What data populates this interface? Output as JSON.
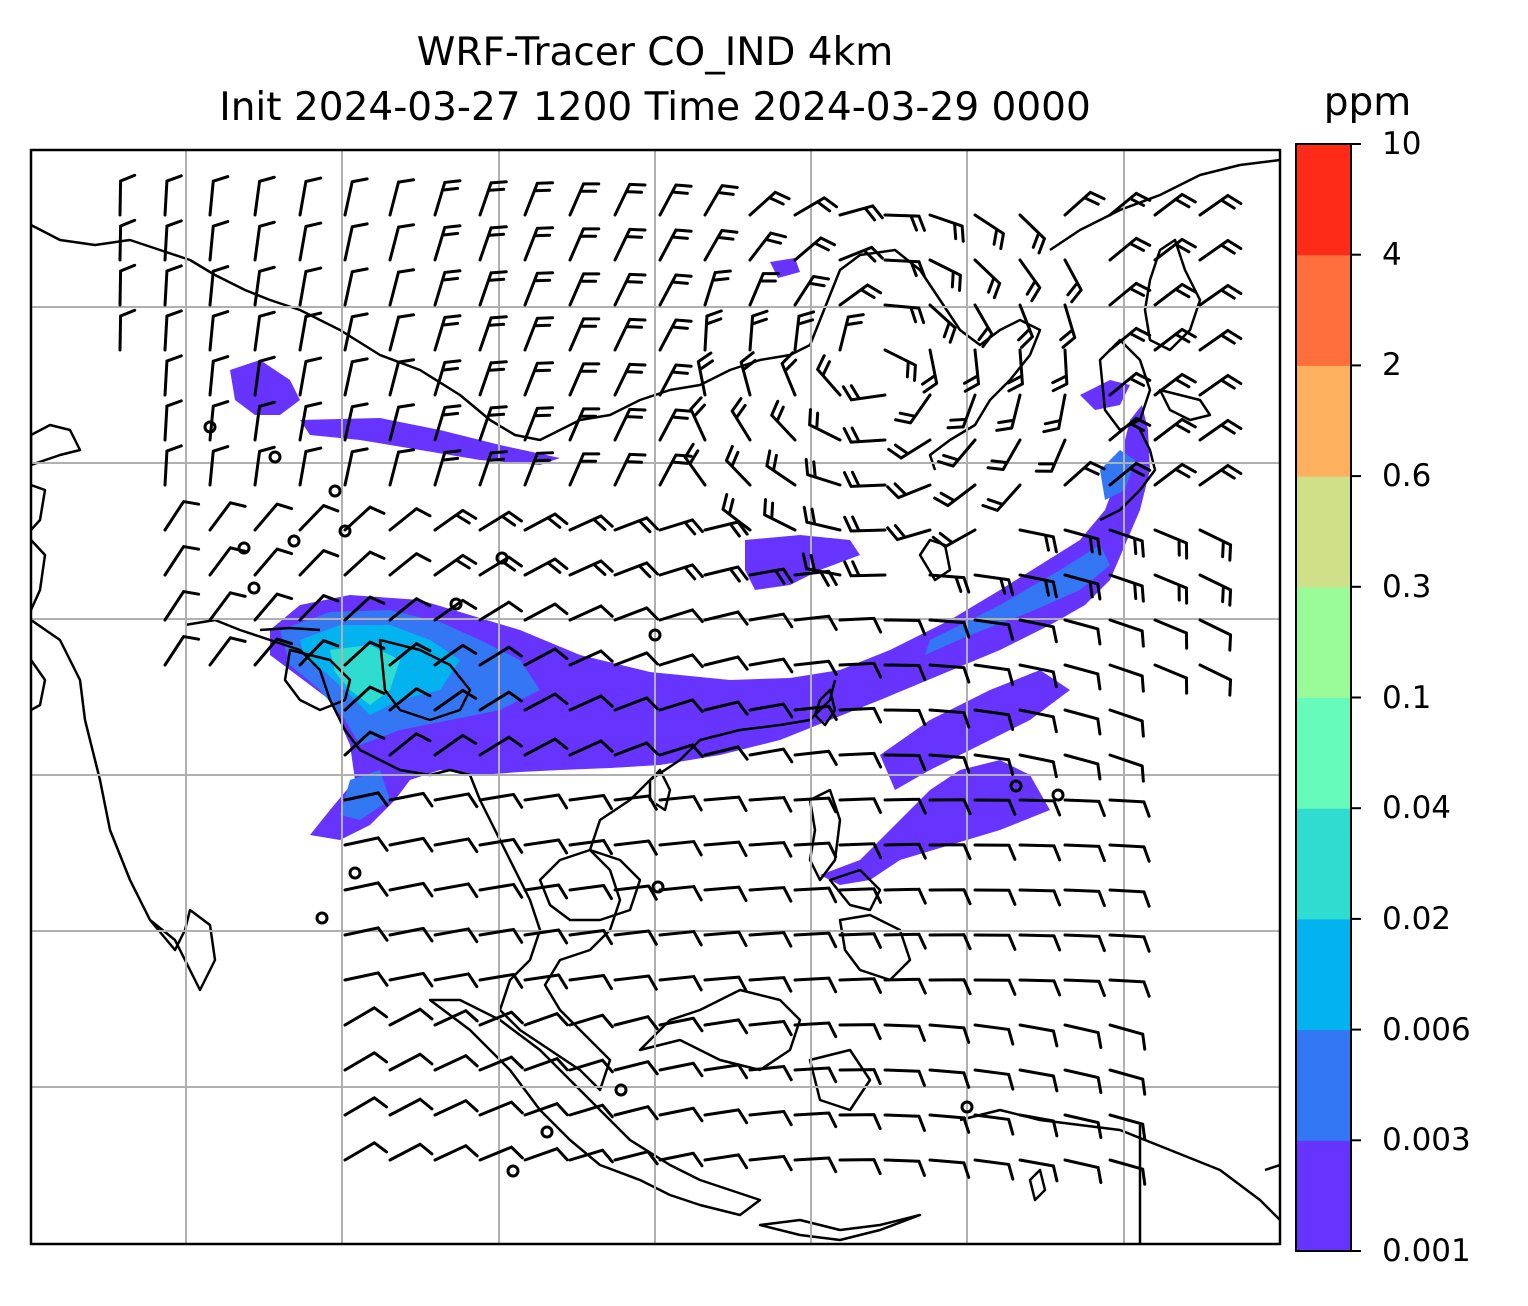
{
  "title": {
    "line1": "WRF-Tracer CO_IND 4km",
    "line2": "Init 2024-03-27 1200 Time 2024-03-29 0000"
  },
  "colorbar": {
    "unit": "ppm",
    "levels": [
      "0.001",
      "0.003",
      "0.006",
      "0.02",
      "0.04",
      "0.1",
      "0.3",
      "0.6",
      "2",
      "4",
      "10"
    ],
    "colors": [
      "#6633ff",
      "#3377f5",
      "#03b3ef",
      "#2fddd0",
      "#66fbbb",
      "#99fb98",
      "#cfe088",
      "#fdb15f",
      "#ff6f3c",
      "#ff2a17"
    ]
  },
  "map": {
    "region": "South and Southeast Asia",
    "tracer": "CO_IND",
    "resolution": "4km",
    "gridlines": true,
    "coastlines": true,
    "wind_barbs": true,
    "plume_color": "#6633ff"
  }
}
